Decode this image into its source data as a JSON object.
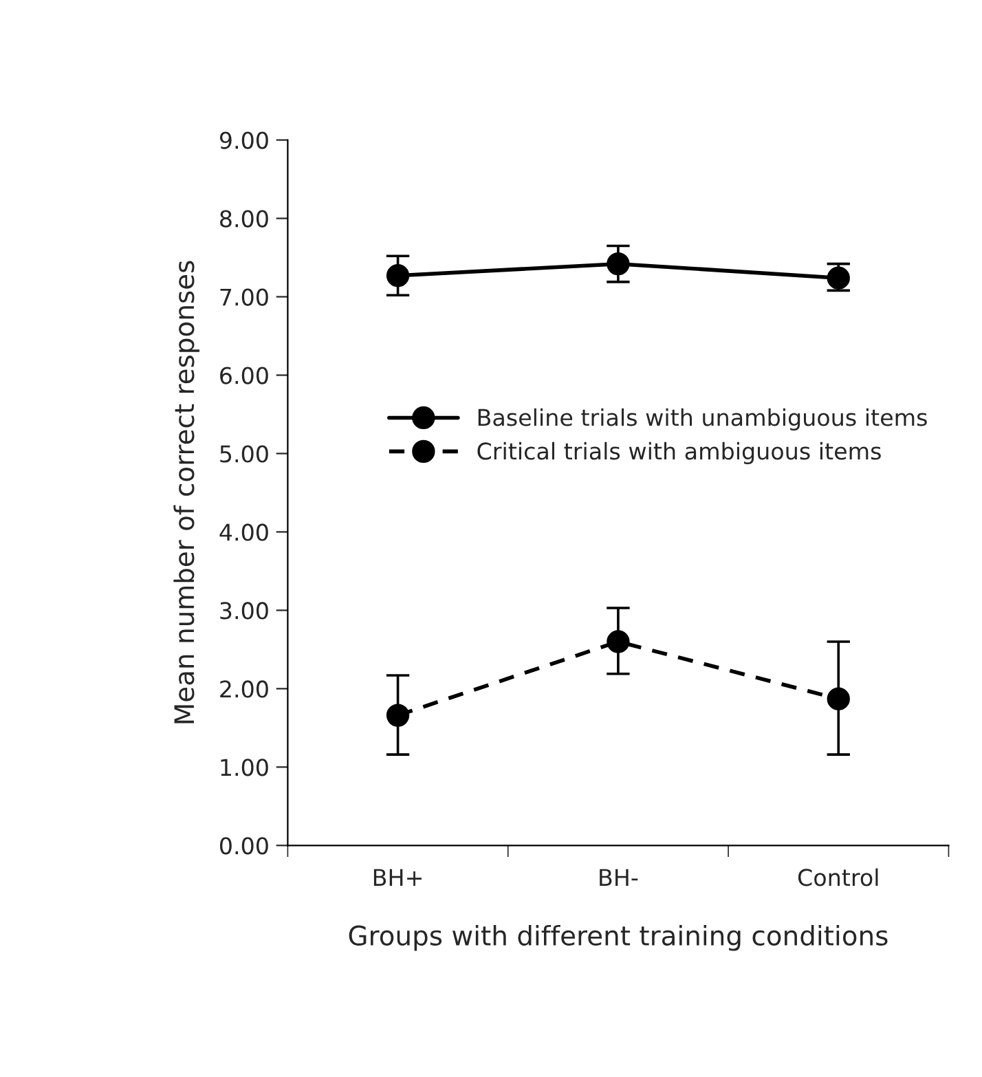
{
  "chart_data": {
    "type": "line",
    "xlabel": "Groups with different training conditions",
    "ylabel": "Mean number of correct responses",
    "categories": [
      "BH+",
      "BH-",
      "Control"
    ],
    "series": [
      {
        "name": "Baseline trials with unambiguous items",
        "color": "#000000",
        "line_style": "solid",
        "values": [
          7.27,
          7.42,
          7.24
        ],
        "errors": [
          [
            7.02,
            7.52
          ],
          [
            7.19,
            7.65
          ],
          [
            7.08,
            7.42
          ]
        ]
      },
      {
        "name": "Critical trials with ambiguous items",
        "color": "#000000",
        "line_style": "dashed",
        "values": [
          1.66,
          2.6,
          1.87
        ],
        "errors": [
          [
            1.16,
            2.17
          ],
          [
            2.19,
            3.03
          ],
          [
            1.16,
            2.6
          ]
        ]
      }
    ],
    "ylim": [
      0,
      9
    ],
    "yticks": [
      {
        "value": 0,
        "label": "0.00"
      },
      {
        "value": 1,
        "label": "1.00"
      },
      {
        "value": 2,
        "label": "2.00"
      },
      {
        "value": 3,
        "label": "3.00"
      },
      {
        "value": 4,
        "label": "4.00"
      },
      {
        "value": 5,
        "label": "5.00"
      },
      {
        "value": 6,
        "label": "6.00"
      },
      {
        "value": 7,
        "label": "7.00"
      },
      {
        "value": 8,
        "label": "8.00"
      },
      {
        "value": 9,
        "label": "9.00"
      }
    ],
    "marker": "circle",
    "grid": false,
    "legend": "right"
  }
}
